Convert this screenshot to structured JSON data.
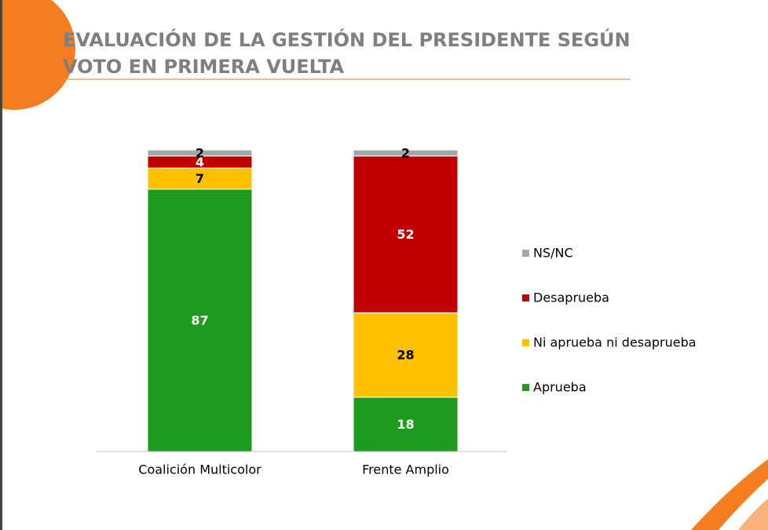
{
  "chart_data": {
    "type": "stacked-bar",
    "title": "EVALUACIÓN DE LA GESTIÓN DEL PRESIDENTE SEGÚN VOTO EN PRIMERA VUELTA",
    "categories": [
      "Coalición Multicolor",
      "Frente Amplio"
    ],
    "series": [
      {
        "name": "Aprueba",
        "color": "#1e9b1e",
        "values": [
          87,
          18
        ]
      },
      {
        "name": "Ni aprueba ni desaprueba",
        "color": "#ffc000",
        "values": [
          7,
          28
        ]
      },
      {
        "name": "Desaprueba",
        "color": "#c00000",
        "values": [
          4,
          52
        ]
      },
      {
        "name": "NS/NC",
        "color": "#a6a6a6",
        "values": [
          2,
          2
        ]
      }
    ],
    "ylim": [
      0,
      100
    ],
    "legend": "right"
  }
}
